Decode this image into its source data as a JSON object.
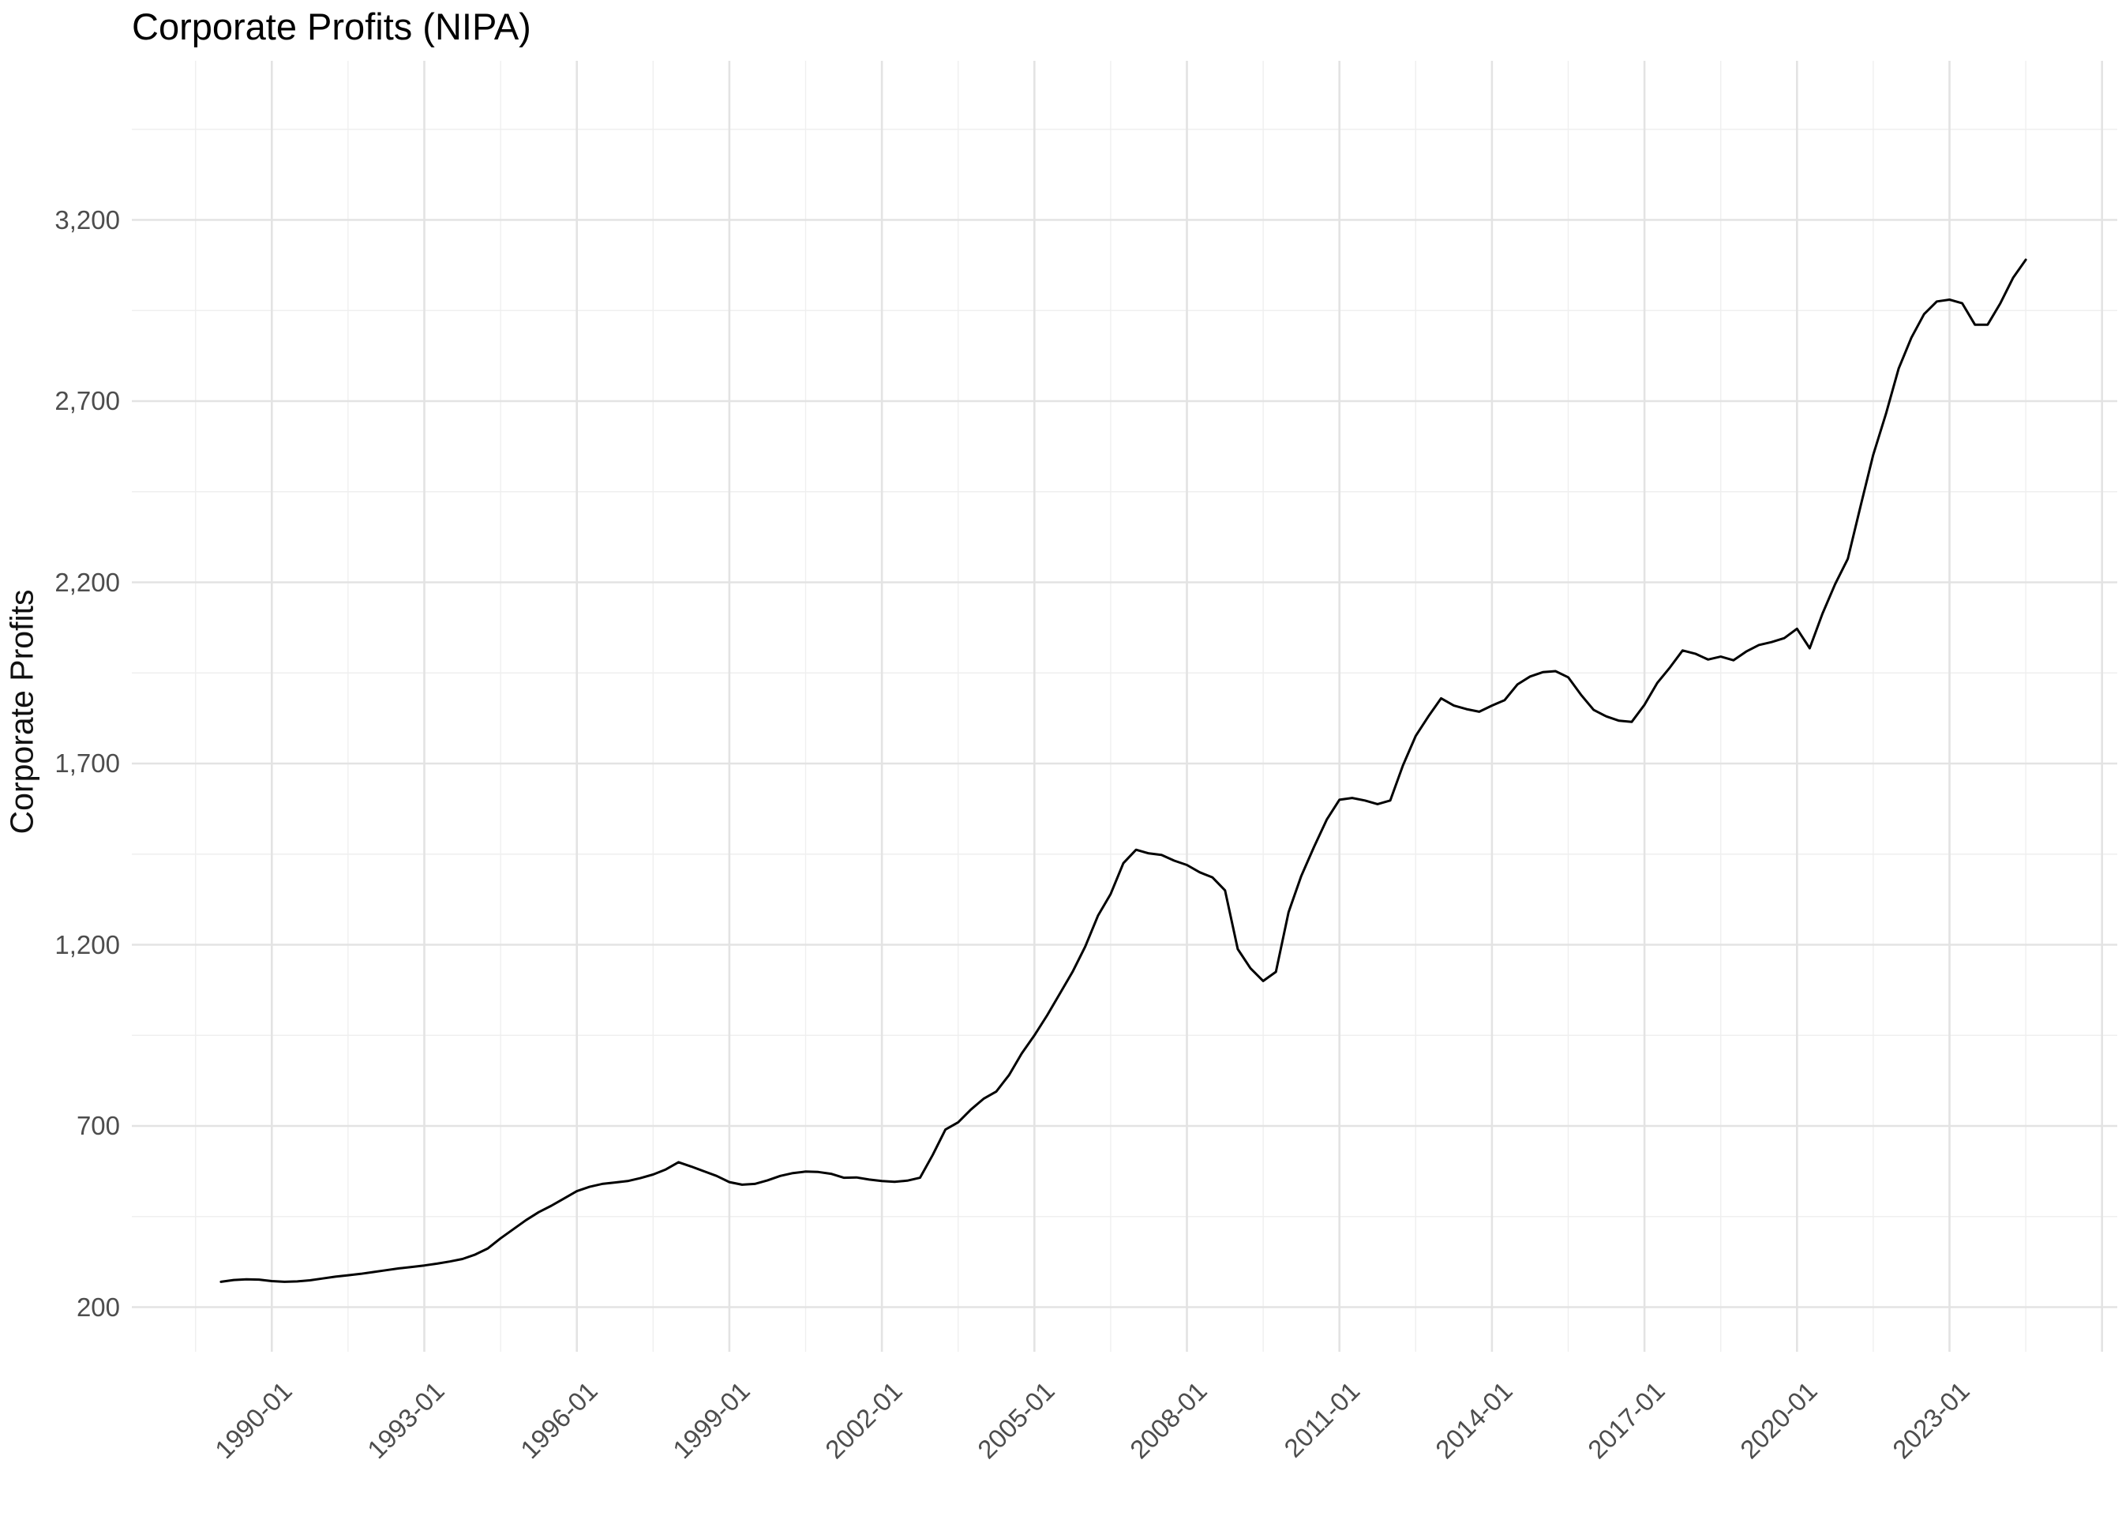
{
  "chart_data": {
    "type": "line",
    "title": "Corporate Profits (NIPA)",
    "xlabel": "",
    "ylabel": "Corporate Profits",
    "legend_position": "none",
    "grid": true,
    "background": "#ffffff",
    "line_color": "#000000",
    "grid_major_color": "#e3e3e3",
    "grid_minor_color": "#efefef",
    "tick_text_color": "#4d4d4d",
    "title_text_color": "#000000",
    "x_unit": "decimal_year_quarterly",
    "x_start": 1989.0,
    "x_step": 0.25,
    "values": [
      270,
      275,
      277,
      276,
      272,
      270,
      271,
      274,
      279,
      284,
      288,
      292,
      297,
      302,
      307,
      311,
      315,
      320,
      326,
      333,
      345,
      362,
      390,
      415,
      440,
      462,
      480,
      500,
      520,
      532,
      540,
      544,
      548,
      556,
      566,
      580,
      600,
      588,
      575,
      562,
      545,
      538,
      540,
      550,
      562,
      570,
      574,
      573,
      568,
      557,
      558,
      552,
      548,
      546,
      549,
      557,
      620,
      690,
      710,
      745,
      775,
      795,
      840,
      900,
      950,
      1005,
      1065,
      1125,
      1195,
      1280,
      1340,
      1425,
      1462,
      1452,
      1448,
      1432,
      1420,
      1400,
      1386,
      1350,
      1188,
      1135,
      1100,
      1125,
      1290,
      1390,
      1470,
      1545,
      1600,
      1605,
      1598,
      1588,
      1598,
      1695,
      1776,
      1830,
      1880,
      1860,
      1850,
      1843,
      1860,
      1875,
      1918,
      1940,
      1952,
      1955,
      1938,
      1890,
      1848,
      1830,
      1818,
      1815,
      1862,
      1922,
      1965,
      2012,
      2003,
      1987,
      1995,
      1985,
      2009,
      2027,
      2035,
      2046,
      2072,
      2018,
      2113,
      2195,
      2265,
      2410,
      2552,
      2665,
      2790,
      2875,
      2940,
      2975,
      2980,
      2970,
      2911,
      2911,
      2970,
      3040,
      3090
    ],
    "x_tick_years": [
      1990,
      1993,
      1996,
      1999,
      2002,
      2005,
      2008,
      2011,
      2014,
      2017,
      2020,
      2023
    ],
    "x_tick_labels": [
      "1990-01",
      "1993-01",
      "1996-01",
      "1999-01",
      "2002-01",
      "2005-01",
      "2008-01",
      "2011-01",
      "2014-01",
      "2017-01",
      "2020-01",
      "2023-01"
    ],
    "y_tick_values": [
      200,
      700,
      1200,
      1700,
      2200,
      2700,
      3200
    ],
    "y_tick_labels": [
      "200",
      "700",
      "1,200",
      "1,700",
      "2,200",
      "2,700",
      "3,200"
    ],
    "ylim": [
      90,
      3640
    ],
    "xlim": [
      1988.25,
      2026.35
    ]
  }
}
